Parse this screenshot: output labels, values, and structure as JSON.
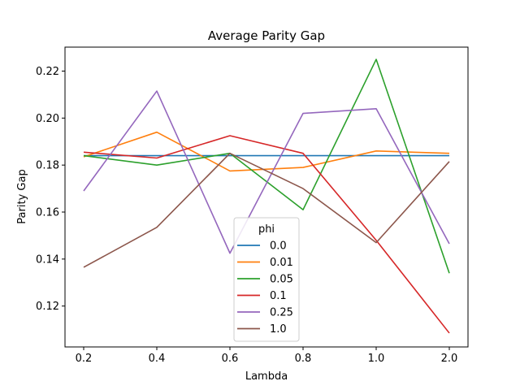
{
  "chart_data": {
    "type": "line",
    "title": "Average Parity Gap",
    "xlabel": "Lambda",
    "ylabel": "Parity Gap",
    "categories": [
      "0.2",
      "0.4",
      "0.6",
      "0.8",
      "1.0",
      "2.0"
    ],
    "ylim": [
      0.1026,
      0.2302
    ],
    "yticks": [
      "0.12",
      "0.14",
      "0.16",
      "0.18",
      "0.20",
      "0.22"
    ],
    "ytick_values": [
      0.12,
      0.14,
      0.16,
      0.18,
      0.2,
      0.22
    ],
    "grid": false,
    "legend": {
      "title": "phi",
      "placement": "lower-center"
    },
    "series": [
      {
        "name": "0.0",
        "color": "#1f77b4",
        "values": [
          0.184,
          0.184,
          0.184,
          0.184,
          0.184,
          0.184
        ]
      },
      {
        "name": "0.01",
        "color": "#ff7f0e",
        "values": [
          0.1835,
          0.194,
          0.1775,
          0.179,
          0.186,
          0.185
        ]
      },
      {
        "name": "0.05",
        "color": "#2ca02c",
        "values": [
          0.184,
          0.18,
          0.185,
          0.161,
          0.225,
          0.134
        ]
      },
      {
        "name": "0.1",
        "color": "#d62728",
        "values": [
          0.1855,
          0.183,
          0.1925,
          0.185,
          0.148,
          0.1085
        ]
      },
      {
        "name": "0.25",
        "color": "#9467bd",
        "values": [
          0.169,
          0.2115,
          0.1425,
          0.202,
          0.204,
          0.1465
        ]
      },
      {
        "name": "1.0",
        "color": "#8c564b",
        "values": [
          0.1365,
          0.1535,
          0.185,
          0.17,
          0.147,
          0.1815
        ]
      }
    ]
  }
}
